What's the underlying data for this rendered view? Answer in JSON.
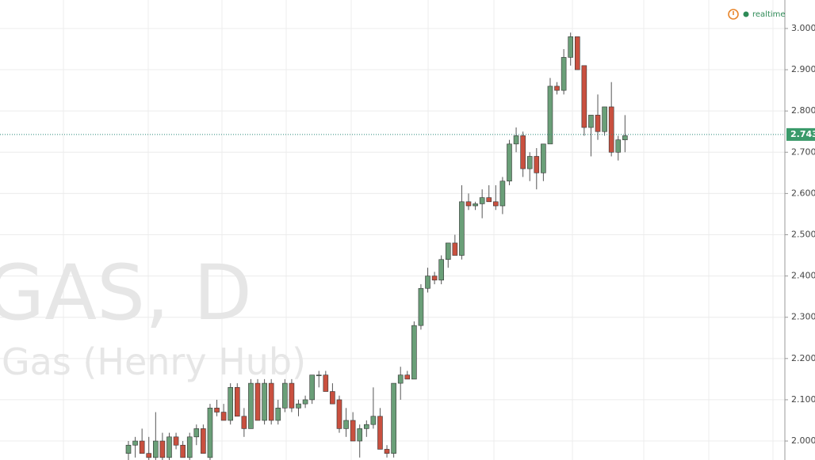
{
  "chart_data": {
    "type": "candlestick",
    "watermark_symbol": "GAS, D",
    "watermark_name": "Gas (Henry Hub)",
    "status": "realtime",
    "up_color": "#6a9f78",
    "down_color": "#c9503f",
    "grid": true,
    "ylim": [
      1.954,
      3.069
    ],
    "yticks": [
      {
        "value": 2.0,
        "label": "2.000"
      },
      {
        "value": 2.1,
        "label": "2.100"
      },
      {
        "value": 2.2,
        "label": "2.200"
      },
      {
        "value": 2.3,
        "label": "2.300"
      },
      {
        "value": 2.4,
        "label": "2.400"
      },
      {
        "value": 2.5,
        "label": "2.500"
      },
      {
        "value": 2.6,
        "label": "2.600"
      },
      {
        "value": 2.7,
        "label": "2.700"
      },
      {
        "value": 2.8,
        "label": "2.800"
      },
      {
        "value": 2.9,
        "label": "2.900"
      },
      {
        "value": 3.0,
        "label": "3.000"
      }
    ],
    "last_price": 2.743,
    "open": [
      1.97,
      1.99,
      2.0,
      1.97,
      1.96,
      2.0,
      1.96,
      2.01,
      1.99,
      1.96,
      2.01,
      2.03,
      1.96,
      2.08,
      2.07,
      2.05,
      2.13,
      2.06,
      2.03,
      2.14,
      2.05,
      2.14,
      2.05,
      2.08,
      2.14,
      2.08,
      2.09,
      2.1,
      2.16,
      2.16,
      2.12,
      2.1,
      2.03,
      2.05,
      2.0,
      2.03,
      2.04,
      2.06,
      1.98,
      1.97,
      2.14,
      2.16,
      2.15,
      2.28,
      2.37,
      2.4,
      2.39,
      2.44,
      2.48,
      2.45,
      2.58,
      2.57,
      2.575,
      2.59,
      2.58,
      2.57,
      2.63,
      2.72,
      2.74,
      2.66,
      2.69,
      2.65,
      2.72,
      2.86,
      2.85,
      2.93,
      2.98,
      2.91,
      2.76,
      2.79,
      2.75,
      2.81,
      2.7,
      2.73
    ],
    "high": [
      2.0,
      2.01,
      2.03,
      2.01,
      2.07,
      2.02,
      2.02,
      2.02,
      2.0,
      2.02,
      2.04,
      2.04,
      2.09,
      2.1,
      2.09,
      2.14,
      2.14,
      2.08,
      2.15,
      2.15,
      2.15,
      2.15,
      2.1,
      2.15,
      2.15,
      2.1,
      2.11,
      2.16,
      2.17,
      2.17,
      2.14,
      2.11,
      2.08,
      2.07,
      2.04,
      2.05,
      2.13,
      2.08,
      1.99,
      2.14,
      2.18,
      2.17,
      2.29,
      2.38,
      2.42,
      2.41,
      2.45,
      2.48,
      2.5,
      2.62,
      2.6,
      2.58,
      2.61,
      2.62,
      2.62,
      2.64,
      2.73,
      2.76,
      2.75,
      2.7,
      2.71,
      2.72,
      2.88,
      2.87,
      2.95,
      2.99,
      2.98,
      2.91,
      2.79,
      2.84,
      2.81,
      2.87,
      2.74,
      2.79
    ],
    "low": [
      1.95,
      1.96,
      1.97,
      1.95,
      1.95,
      1.95,
      1.95,
      1.98,
      1.96,
      1.95,
      1.99,
      1.97,
      1.95,
      2.06,
      2.05,
      2.04,
      2.06,
      2.01,
      2.03,
      2.05,
      2.04,
      2.04,
      2.04,
      2.07,
      2.07,
      2.06,
      2.08,
      2.09,
      2.13,
      2.12,
      2.09,
      2.02,
      2.01,
      2.0,
      1.96,
      2.01,
      2.03,
      1.98,
      1.96,
      1.96,
      2.1,
      2.15,
      2.15,
      2.27,
      2.36,
      2.38,
      2.38,
      2.42,
      2.45,
      2.44,
      2.56,
      2.56,
      2.54,
      2.58,
      2.56,
      2.55,
      2.62,
      2.7,
      2.64,
      2.63,
      2.61,
      2.63,
      2.72,
      2.84,
      2.84,
      2.91,
      2.9,
      2.74,
      2.69,
      2.73,
      2.74,
      2.69,
      2.68,
      2.7
    ],
    "close": [
      1.99,
      2.0,
      1.97,
      1.96,
      2.0,
      1.96,
      2.01,
      1.99,
      1.96,
      2.01,
      2.03,
      1.97,
      2.08,
      2.07,
      2.05,
      2.13,
      2.06,
      2.03,
      2.14,
      2.05,
      2.14,
      2.05,
      2.08,
      2.14,
      2.08,
      2.09,
      2.1,
      2.16,
      2.16,
      2.12,
      2.09,
      2.03,
      2.05,
      2.0,
      2.03,
      2.04,
      2.06,
      1.98,
      1.97,
      2.14,
      2.16,
      2.15,
      2.28,
      2.37,
      2.4,
      2.39,
      2.44,
      2.48,
      2.45,
      2.58,
      2.57,
      2.575,
      2.59,
      2.58,
      2.57,
      2.63,
      2.72,
      2.74,
      2.66,
      2.69,
      2.65,
      2.72,
      2.86,
      2.85,
      2.93,
      2.98,
      2.9,
      2.76,
      2.79,
      2.75,
      2.81,
      2.7,
      2.73,
      2.74
    ]
  }
}
